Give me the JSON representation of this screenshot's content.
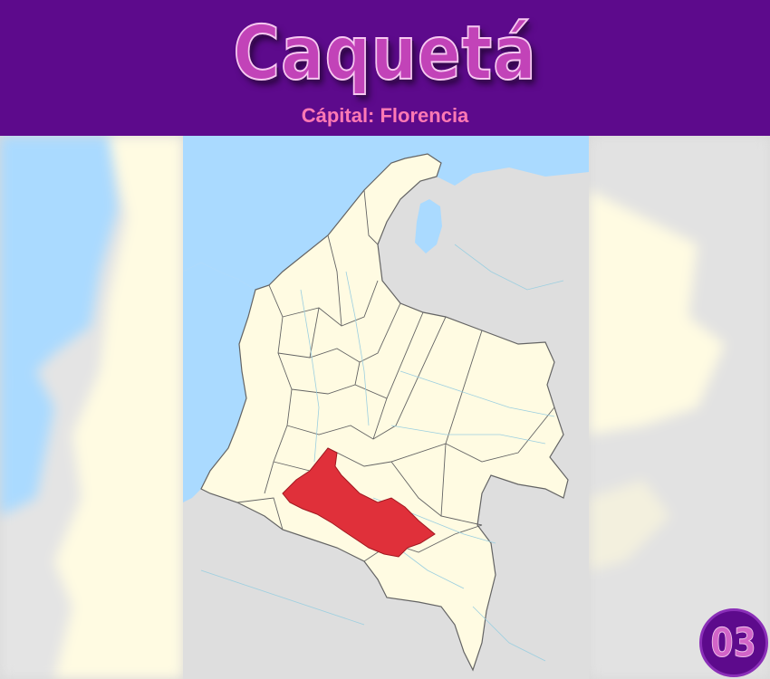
{
  "header": {
    "title": "Caquetá",
    "subtitle": "Cápital: Florencia"
  },
  "map": {
    "highlighted_region": "Caquetá",
    "colors": {
      "banner": "#5d0a8c",
      "title": "#c243b8",
      "subtitle": "#ff79b4",
      "sea": "#aadaff",
      "country": "#fffbe2",
      "neighbors": "#dedede",
      "highlight": "#e0303a",
      "borders": "#646464",
      "rivers": "#9ccfe0"
    }
  },
  "badge": {
    "number": "03"
  }
}
